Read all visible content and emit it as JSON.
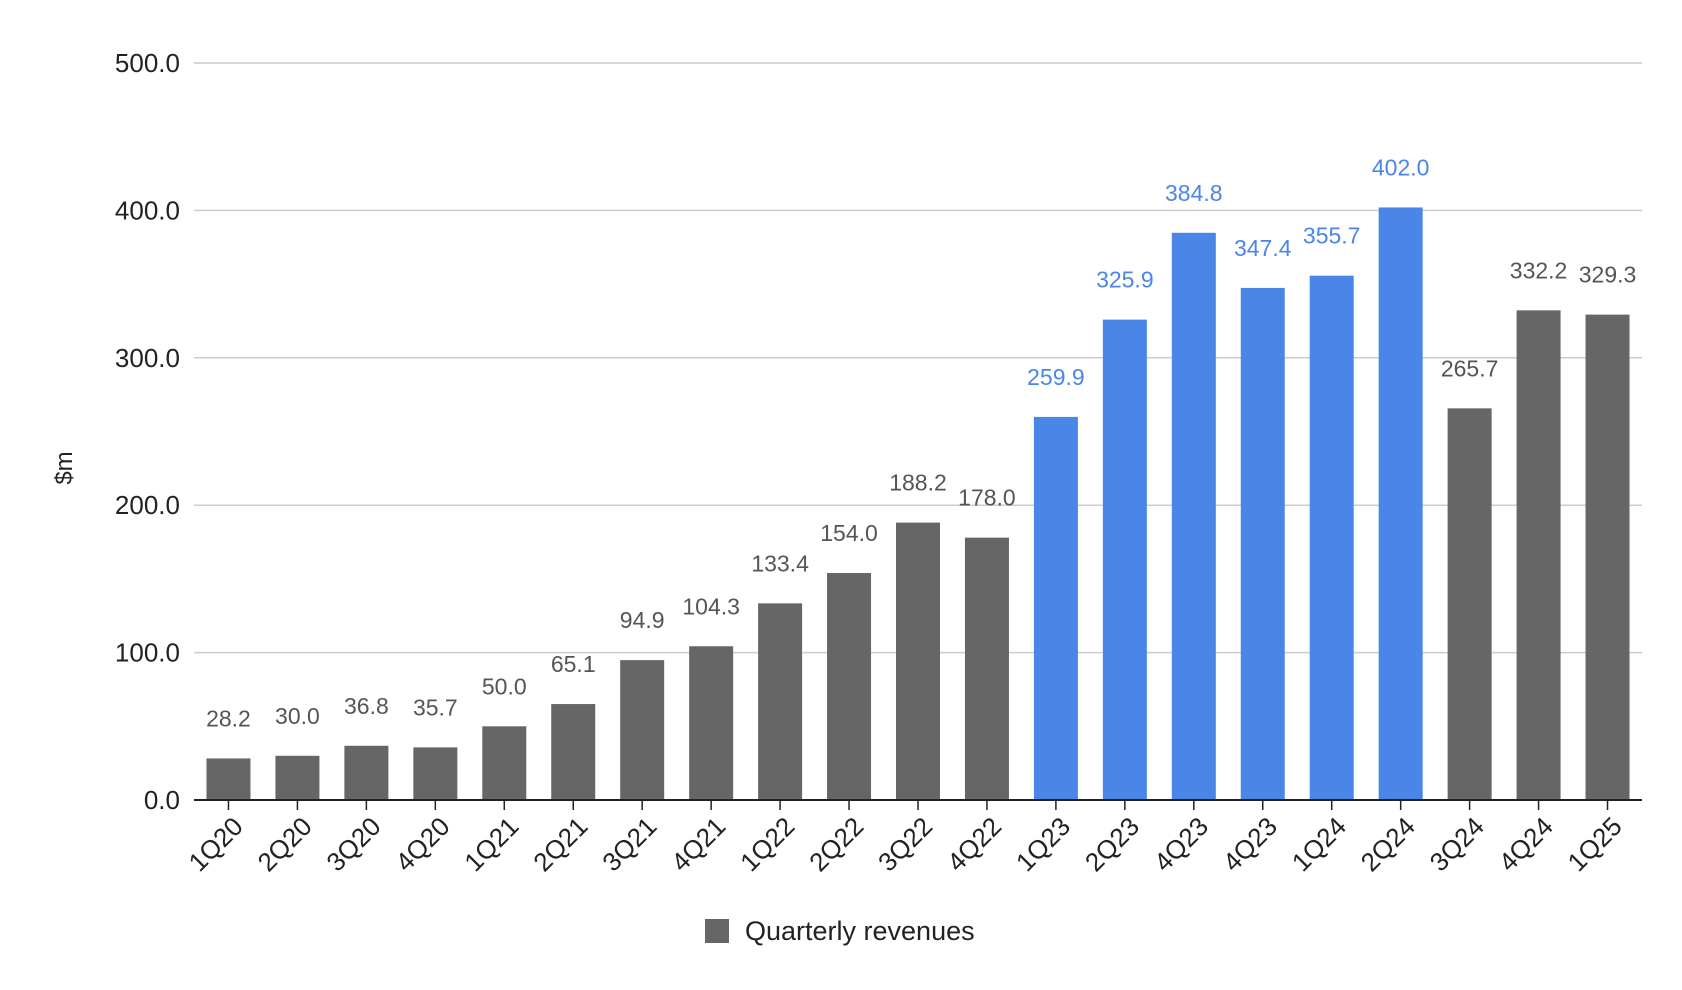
{
  "chart_data": {
    "type": "bar",
    "categories": [
      "1Q20",
      "2Q20",
      "3Q20",
      "4Q20",
      "1Q21",
      "2Q21",
      "3Q21",
      "4Q21",
      "1Q22",
      "2Q22",
      "3Q22",
      "4Q22",
      "1Q23",
      "2Q23",
      "4Q23",
      "4Q23",
      "1Q24",
      "2Q24",
      "3Q24",
      "4Q24",
      "1Q25"
    ],
    "series": [
      {
        "name": "Quarterly revenues",
        "values": [
          28.2,
          30.0,
          36.8,
          35.7,
          50.0,
          65.1,
          94.9,
          104.3,
          133.4,
          154.0,
          188.2,
          178.0,
          259.9,
          325.9,
          384.8,
          347.4,
          355.7,
          402.0,
          265.7,
          332.2,
          329.3
        ],
        "data_labels": [
          "28.2",
          "30.0",
          "36.8",
          "35.7",
          "50.0",
          "65.1",
          "94.9",
          "104.3",
          "133.4",
          "154.0",
          "188.2",
          "178.0",
          "259.9",
          "325.9",
          "384.8",
          "347.4",
          "355.7",
          "402.0",
          "265.7",
          "332.2",
          "329.3"
        ],
        "color": "#666666",
        "highlight_color": "#4a86e8",
        "highlighted": [
          false,
          false,
          false,
          false,
          false,
          false,
          false,
          false,
          false,
          false,
          false,
          false,
          true,
          true,
          true,
          true,
          true,
          true,
          false,
          false,
          false
        ]
      }
    ],
    "title": "",
    "xlabel": "",
    "ylabel": "$m",
    "ylim": [
      0,
      500
    ],
    "yticks": [
      0,
      100,
      200,
      300,
      400,
      500
    ],
    "ytick_labels": [
      "0.0",
      "100.0",
      "200.0",
      "300.0",
      "400.0",
      "500.0"
    ],
    "grid": true,
    "legend_placement": "bottom",
    "colors": {
      "grid": "#cccccc",
      "axis": "#222222",
      "gray_label": "#555555",
      "blue_label": "#4a86e8"
    }
  }
}
